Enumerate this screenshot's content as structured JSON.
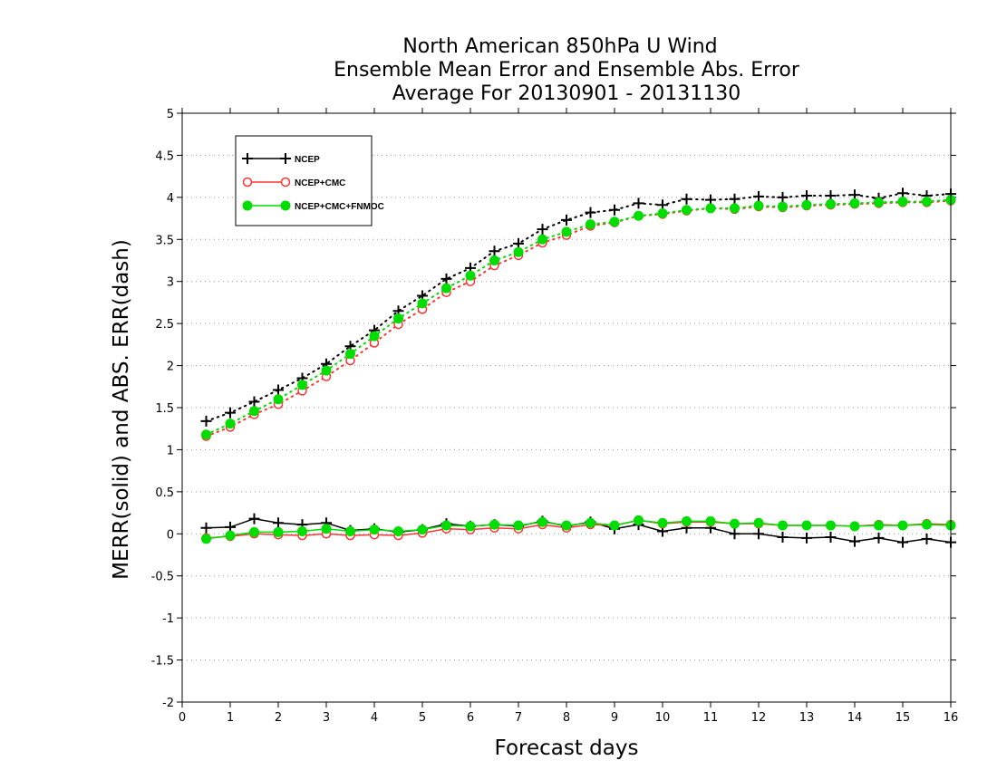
{
  "chart_data": {
    "type": "line",
    "title": [
      "North American 850hPa U Wind",
      "Ensemble Mean Error and Ensemble Abs. Error",
      "Average For 20130901 - 20131130"
    ],
    "xlabel": "Forecast days",
    "ylabel": "MERR(solid) and ABS. ERR(dash)",
    "xlim": [
      0,
      16
    ],
    "ylim": [
      -2,
      5
    ],
    "xticks": [
      "0",
      "1",
      "2",
      "3",
      "4",
      "5",
      "6",
      "7",
      "8",
      "9",
      "10",
      "11",
      "12",
      "13",
      "14",
      "15",
      "16"
    ],
    "yticks": [
      "-2",
      "-1.5",
      "-1",
      "-0.5",
      "0",
      "0.5",
      "1",
      "1.5",
      "2",
      "2.5",
      "3",
      "3.5",
      "4",
      "4.5",
      "5"
    ],
    "grid": "horizontal dotted",
    "legend_position": "top-left",
    "x": [
      0.5,
      1,
      1.5,
      2,
      2.5,
      3,
      3.5,
      4,
      4.5,
      5,
      5.5,
      6,
      6.5,
      7,
      7.5,
      8,
      8.5,
      9,
      9.5,
      10,
      10.5,
      11,
      11.5,
      12,
      12.5,
      13,
      13.5,
      14,
      14.5,
      15,
      15.5,
      16
    ],
    "series": [
      {
        "name": "NCEP",
        "color": "#000000",
        "marker": "plus",
        "mean_error": [
          0.07,
          0.08,
          0.18,
          0.13,
          0.11,
          0.13,
          0.04,
          0.06,
          0.02,
          0.05,
          0.12,
          0.09,
          0.11,
          0.09,
          0.15,
          0.09,
          0.14,
          0.06,
          0.11,
          0.03,
          0.07,
          0.07,
          0.0,
          0.0,
          -0.04,
          -0.05,
          -0.04,
          -0.09,
          -0.05,
          -0.1,
          -0.06,
          -0.1
        ],
        "abs_error": [
          1.34,
          1.44,
          1.57,
          1.71,
          1.85,
          2.02,
          2.23,
          2.42,
          2.65,
          2.83,
          3.03,
          3.16,
          3.36,
          3.45,
          3.62,
          3.73,
          3.82,
          3.85,
          3.93,
          3.91,
          3.98,
          3.97,
          3.98,
          4.01,
          4.0,
          4.02,
          4.02,
          4.03,
          3.99,
          4.05,
          4.02,
          4.04
        ]
      },
      {
        "name": "NCEP+CMC",
        "color": "#ff3333",
        "marker": "open-circle",
        "mean_error": [
          -0.05,
          -0.03,
          0.0,
          -0.01,
          -0.02,
          0.0,
          -0.02,
          -0.01,
          -0.02,
          0.01,
          0.06,
          0.05,
          0.07,
          0.06,
          0.11,
          0.07,
          0.11,
          0.1,
          0.16,
          0.12,
          0.14,
          0.14,
          0.12,
          0.12,
          0.1,
          0.1,
          0.1,
          0.09,
          0.11,
          0.1,
          0.12,
          0.11
        ],
        "abs_error": [
          1.16,
          1.27,
          1.42,
          1.54,
          1.7,
          1.87,
          2.06,
          2.27,
          2.49,
          2.67,
          2.87,
          3.0,
          3.19,
          3.31,
          3.46,
          3.55,
          3.66,
          3.7,
          3.78,
          3.8,
          3.84,
          3.87,
          3.86,
          3.89,
          3.88,
          3.9,
          3.91,
          3.92,
          3.93,
          3.94,
          3.94,
          3.96
        ]
      },
      {
        "name": "NCEP+CMC+FNMOC",
        "color": "#00dd00",
        "marker": "filled-circle",
        "mean_error": [
          -0.06,
          -0.02,
          0.02,
          0.02,
          0.03,
          0.06,
          0.03,
          0.05,
          0.03,
          0.05,
          0.1,
          0.09,
          0.11,
          0.1,
          0.14,
          0.1,
          0.13,
          0.1,
          0.16,
          0.13,
          0.15,
          0.15,
          0.12,
          0.13,
          0.1,
          0.1,
          0.1,
          0.09,
          0.1,
          0.1,
          0.11,
          0.1
        ],
        "abs_error": [
          1.18,
          1.31,
          1.46,
          1.6,
          1.77,
          1.94,
          2.14,
          2.35,
          2.56,
          2.74,
          2.92,
          3.07,
          3.25,
          3.35,
          3.5,
          3.59,
          3.68,
          3.71,
          3.78,
          3.81,
          3.85,
          3.87,
          3.87,
          3.9,
          3.89,
          3.91,
          3.92,
          3.93,
          3.94,
          3.95,
          3.95,
          3.97
        ]
      }
    ]
  }
}
